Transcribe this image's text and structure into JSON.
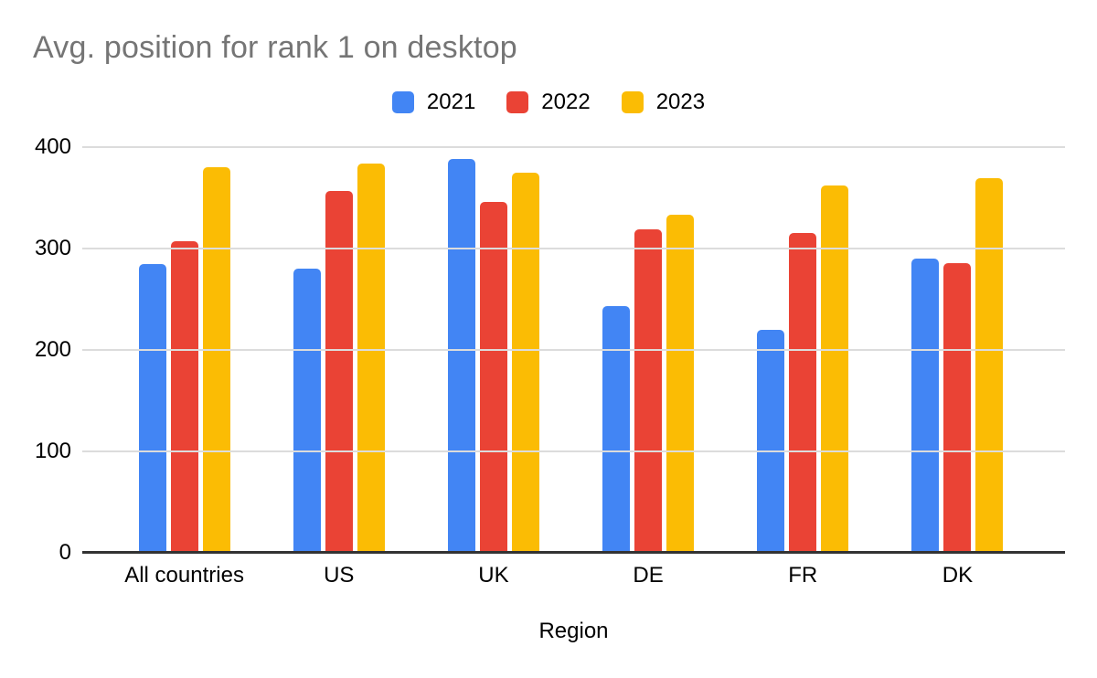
{
  "styles": {
    "background": "#ffffff",
    "title_color": "#757575",
    "axis_line_color": "#333333",
    "gridline_color": "#dcdcdc",
    "label_color": "#000000"
  },
  "chart_data": {
    "type": "bar",
    "title": "Avg. position for rank 1 on desktop",
    "xlabel": "Region",
    "ylabel": "",
    "categories": [
      "All countries",
      "US",
      "UK",
      "DE",
      "FR",
      "DK"
    ],
    "series": [
      {
        "name": "2021",
        "color": "#4285F4",
        "values": [
          285,
          280,
          388,
          243,
          220,
          290
        ]
      },
      {
        "name": "2022",
        "color": "#EA4335",
        "values": [
          307,
          357,
          346,
          319,
          315,
          286
        ]
      },
      {
        "name": "2023",
        "color": "#FBBC04",
        "values": [
          380,
          384,
          375,
          333,
          362,
          369
        ]
      }
    ],
    "ylim": [
      0,
      400
    ],
    "yticks": [
      0,
      100,
      200,
      300,
      400
    ],
    "grid": true,
    "legend_position": "top"
  }
}
